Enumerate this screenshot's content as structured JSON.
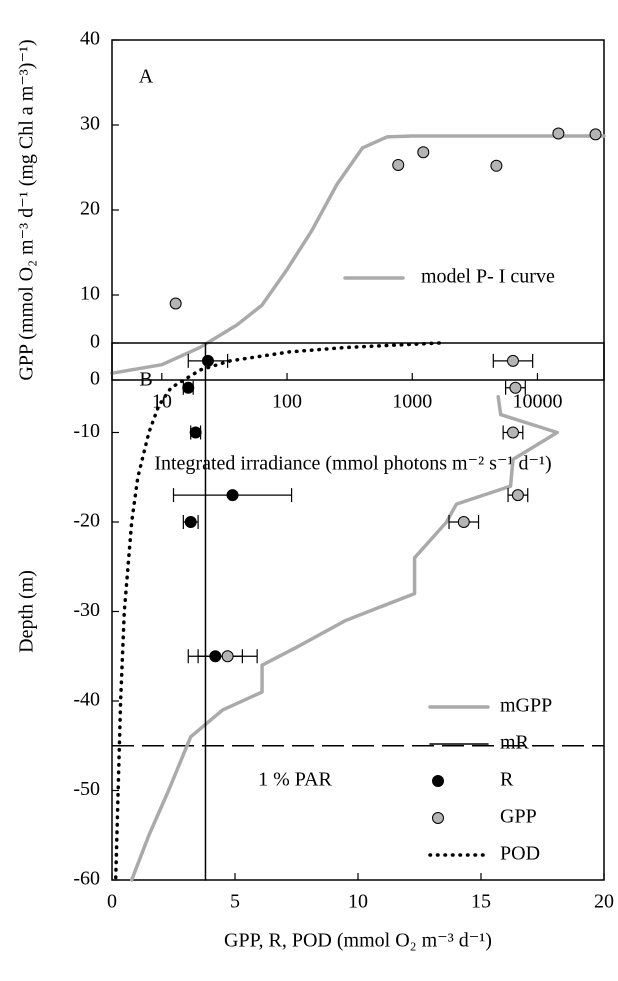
{
  "chart_data": [
    {
      "type": "scatter",
      "panel_label": "A",
      "xlabel": "Integrated irradiance (mmol photons m⁻² s⁻¹ d⁻¹)",
      "ylabel": "GPP (mmol O₂ m⁻³ d⁻¹ (mg Chl a m⁻³)⁻¹)",
      "xscale": "log",
      "xlim": [
        4,
        34000
      ],
      "ylim": [
        0,
        40
      ],
      "xticks": [
        10,
        100,
        1000,
        10000
      ],
      "yticks": [
        0,
        10,
        20,
        30,
        40
      ],
      "legend": "center right",
      "series": [
        {
          "name": "model P- I curve",
          "style": "line",
          "color": "#aaaaaa",
          "x": [
            4,
            10,
            20,
            40,
            63,
            100,
            158,
            250,
            400,
            630,
            1000,
            34000
          ],
          "y": [
            0.8,
            1.8,
            3.8,
            6.5,
            8.8,
            13,
            17.6,
            23,
            27.3,
            28.6,
            28.7,
            28.7
          ]
        },
        {
          "style": "marker",
          "color": "#b4b4b4",
          "x": [
            12.9,
            773,
            1225,
            4700,
            14700,
            29100
          ],
          "y": [
            9,
            25.3,
            26.8,
            25.2,
            29,
            28.9
          ]
        }
      ]
    },
    {
      "type": "line",
      "panel_label": "B",
      "xlabel": "GPP, R, POD (mmol O₂ m⁻³ d⁻¹)",
      "ylabel": "Depth (m)",
      "xlim": [
        0,
        20
      ],
      "ylim": [
        -60,
        0
      ],
      "xticks": [
        0,
        5,
        10,
        15,
        20
      ],
      "yticks": [
        0,
        -10,
        -20,
        -30,
        -40,
        -50,
        -60
      ],
      "legend": "lower right",
      "hline": -45,
      "hline_label": "1 % PAR",
      "series": [
        {
          "name": "mGPP",
          "style": "line",
          "color": "#aaaaaa",
          "x": [
            15.7,
            15.8,
            18.1,
            16.3,
            16.2,
            14,
            13.6,
            12.3,
            12.3,
            9.5,
            7.5,
            6.1,
            6.1,
            4.5,
            3.2,
            2.3,
            1.5,
            0.8
          ],
          "y": [
            -6,
            -8,
            -10,
            -13,
            -16,
            -18,
            -20,
            -24,
            -28,
            -31,
            -34,
            -36,
            -39,
            -41,
            -44,
            -50,
            -55,
            -60
          ]
        },
        {
          "name": "mR",
          "style": "line",
          "color": "#000000",
          "x": [
            3.8,
            3.8
          ],
          "y": [
            0,
            -60
          ]
        },
        {
          "name": "R",
          "style": "marker",
          "color": "#000000",
          "x": [
            3.9,
            3.1,
            3.4,
            4.9,
            3.2,
            4.2
          ],
          "xerr": [
            0.8,
            0.2,
            0.2,
            2.4,
            0.3,
            1.1
          ],
          "y": [
            -2,
            -5,
            -10,
            -17,
            -20,
            -35
          ]
        },
        {
          "name": "GPP",
          "style": "marker",
          "color": "#b4b4b4",
          "x": [
            16.3,
            16.4,
            16.3,
            16.5,
            14.3,
            4.7
          ],
          "xerr": [
            0.8,
            0.4,
            0.4,
            0.4,
            0.6,
            1.2
          ],
          "y": [
            -2,
            -5,
            -10,
            -17,
            -20,
            -35
          ]
        },
        {
          "name": "POD",
          "style": "line",
          "dash": "dotted",
          "color": "#000000",
          "x": [
            13.3,
            9.5,
            7.2,
            4.8,
            3.6,
            2.4,
            1.9,
            1.5,
            1.05,
            0.8,
            0.5,
            0.35,
            0.25,
            0.15
          ],
          "y": [
            0,
            -0.5,
            -1,
            -2,
            -3,
            -5,
            -7,
            -10,
            -15,
            -20,
            -30,
            -40,
            -50,
            -60
          ]
        }
      ]
    }
  ]
}
